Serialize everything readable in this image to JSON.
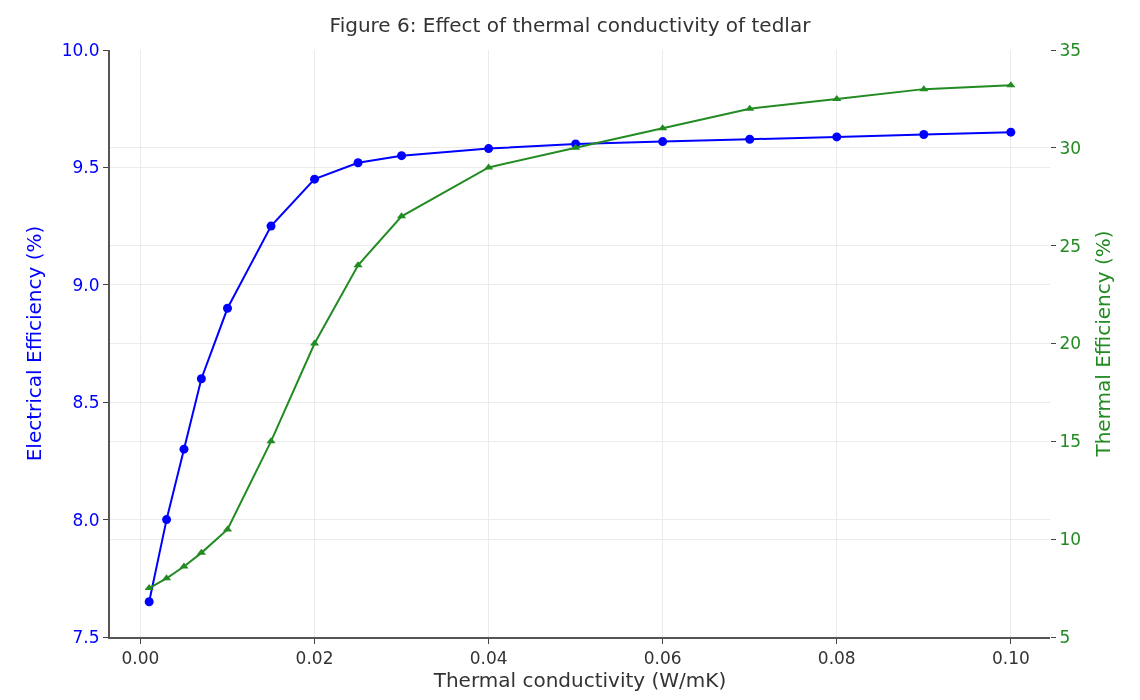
{
  "chart_data": {
    "type": "line",
    "title": "Figure 6: Effect of thermal conductivity of tedlar",
    "xlabel": "Thermal conductivity (W/mK)",
    "ylabel": "Electrical Efficiency (%)",
    "y2label": "Thermal Efficiency (%)",
    "x": [
      0.001,
      0.003,
      0.005,
      0.007,
      0.01,
      0.015,
      0.02,
      0.025,
      0.03,
      0.04,
      0.05,
      0.06,
      0.07,
      0.08,
      0.09,
      0.1
    ],
    "series": [
      {
        "color": "#0000ff",
        "marker": "circle",
        "values": [
          7.65,
          8.0,
          8.3,
          8.6,
          8.9,
          9.25,
          9.45,
          9.52,
          9.55,
          9.58,
          9.6,
          9.61,
          9.62,
          9.63,
          9.64,
          9.65
        ]
      },
      {
        "color": "#228b22",
        "marker": "triangle",
        "axis": "y2",
        "values": [
          7.5,
          8.0,
          8.6,
          9.3,
          10.5,
          15,
          20,
          24,
          26.5,
          29,
          30,
          31,
          32,
          32.5,
          33,
          33.2
        ]
      }
    ],
    "xlim": [
      -0.0035,
      0.1045
    ],
    "xticks": [
      {
        "value": 0,
        "label": "0.00"
      },
      0.02,
      0.04,
      0.06,
      0.08,
      {
        "value": 0.1,
        "label": "0.10"
      }
    ],
    "ylim": [
      7.5,
      10.0
    ],
    "yticks": [
      7.5,
      {
        "value": 8,
        "label": "8.0"
      },
      8.5,
      {
        "value": 9,
        "label": "9.0"
      },
      9.5,
      {
        "value": 10,
        "label": "10.0"
      }
    ],
    "y2lim": [
      5,
      35
    ],
    "y2ticks": [
      5,
      10,
      15,
      20,
      25,
      30,
      35
    ],
    "grid": true,
    "line_style": "solid"
  }
}
